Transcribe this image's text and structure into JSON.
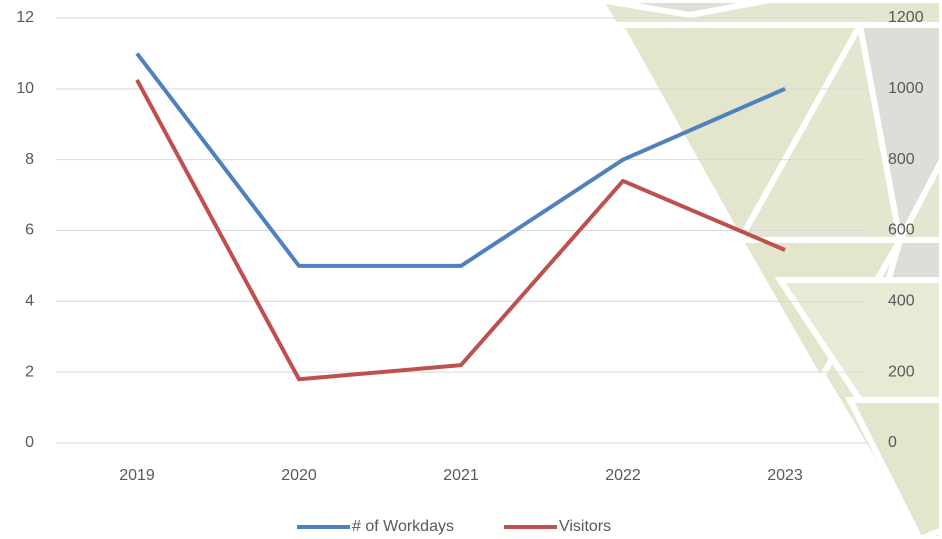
{
  "chart_data": {
    "type": "line",
    "categories": [
      "2019",
      "2020",
      "2021",
      "2022",
      "2023"
    ],
    "series": [
      {
        "name": "# of Workdays",
        "color": "#4f81bd",
        "values": [
          11,
          5,
          5,
          8,
          10
        ]
      },
      {
        "name": "Visitors",
        "color": "#c0504d",
        "axis": "y2",
        "values": [
          1025,
          180,
          220,
          740,
          545
        ]
      }
    ],
    "ylim": [
      0,
      12
    ],
    "yticks": [
      0,
      2,
      4,
      6,
      8,
      10,
      12
    ],
    "y2lim": [
      0,
      1200
    ],
    "y2ticks": [
      0,
      200,
      400,
      600,
      800,
      1000,
      1200
    ],
    "grid": true,
    "legend": "bottom"
  }
}
